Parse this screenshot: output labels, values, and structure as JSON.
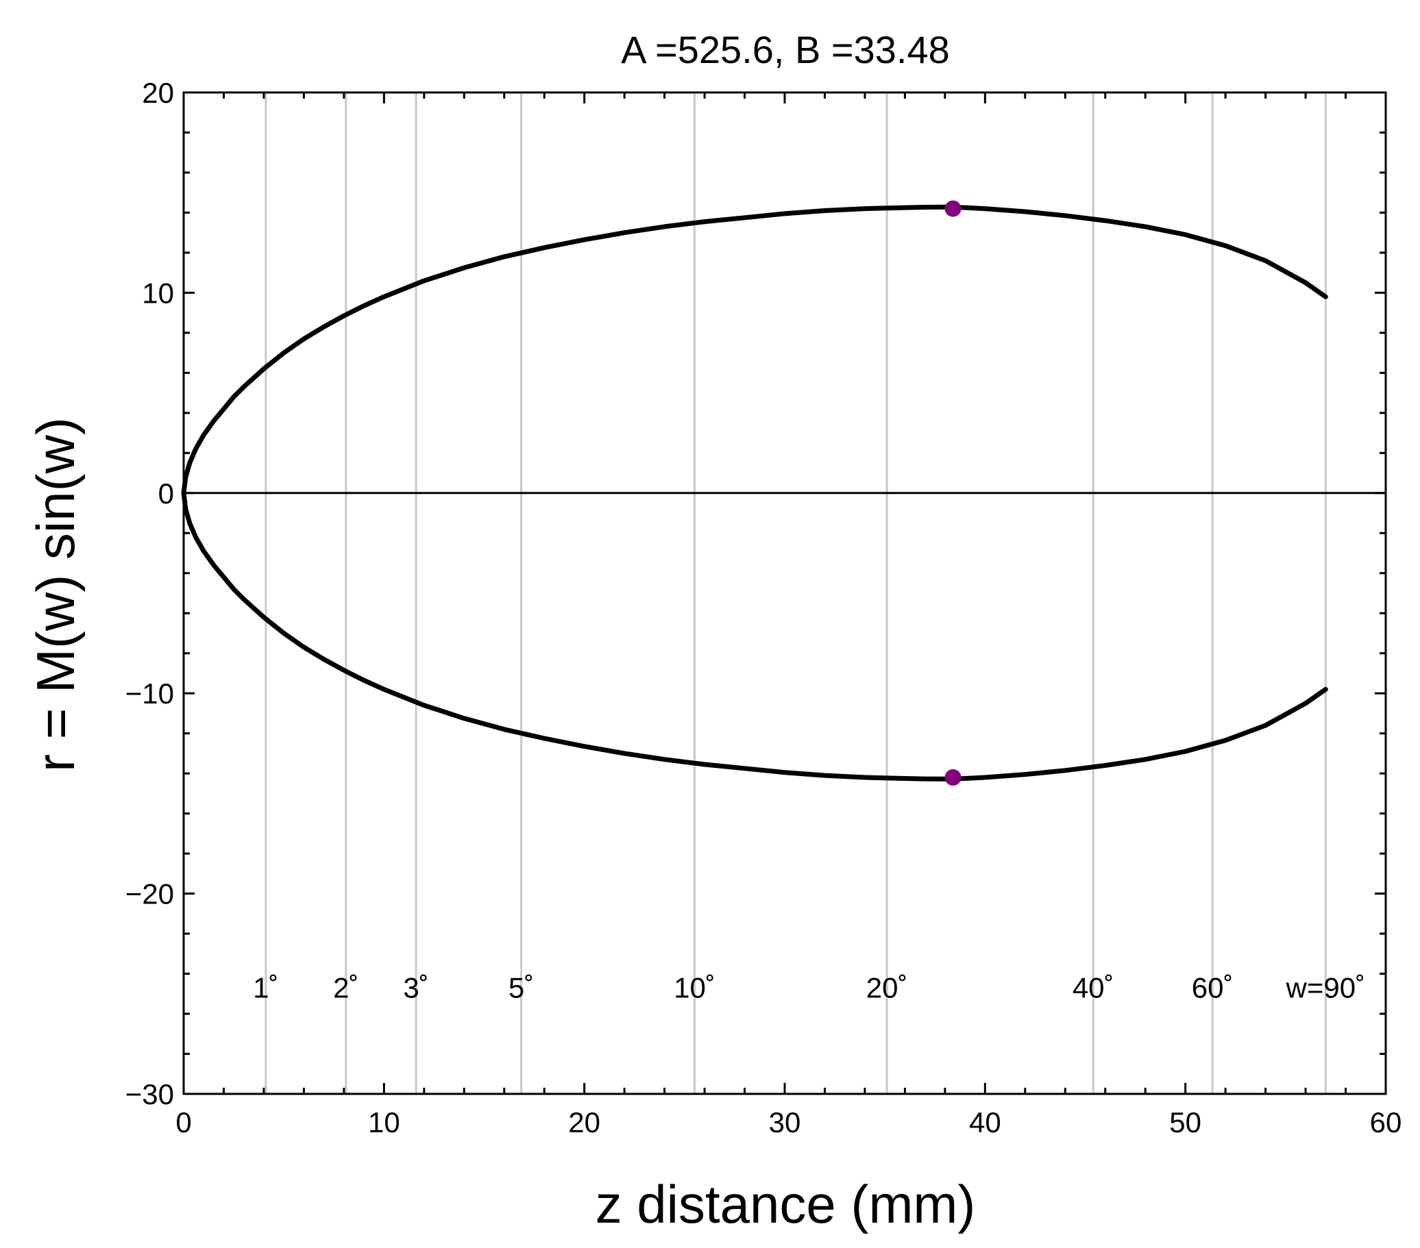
{
  "chart_data": {
    "type": "line",
    "title": "A =525.6, B =33.48",
    "xlabel": "z distance (mm)",
    "ylabel": "r = M(w) sin(w)",
    "xlim": [
      0,
      60
    ],
    "ylim": [
      -30,
      20
    ],
    "x_ticks": [
      0,
      10,
      20,
      30,
      40,
      50,
      60
    ],
    "x_tick_labels": [
      "0",
      "10",
      "20",
      "30",
      "40",
      "50",
      "60"
    ],
    "y_ticks": [
      20,
      10,
      0,
      -10,
      -20,
      -30
    ],
    "y_tick_labels": [
      "20",
      "10",
      "0",
      "−10",
      "−20",
      "−30"
    ],
    "grid": false,
    "zero_line": true,
    "series": [
      {
        "color": "#000000",
        "x": [
          0,
          0.1,
          0.3,
          0.6,
          1.0,
          1.5,
          2.0,
          2.5,
          3.0,
          4.0,
          5.0,
          6.0,
          7.0,
          8.0,
          9.0,
          10.0,
          12.0,
          14.0,
          16.0,
          18.0,
          20.0,
          22.0,
          24.0,
          26.0,
          28.0,
          30.0,
          32.0,
          34.0,
          36.0,
          37.0,
          38.0,
          38.4,
          39.0,
          40.0,
          42.0,
          44.0,
          46.0,
          48.0,
          50.0,
          52.0,
          54.0,
          56.0,
          57.0
        ],
        "y": [
          0,
          0.8,
          1.5,
          2.2,
          2.9,
          3.6,
          4.2,
          4.8,
          5.3,
          6.2,
          7.0,
          7.7,
          8.3,
          8.85,
          9.35,
          9.8,
          10.6,
          11.25,
          11.8,
          12.25,
          12.65,
          13.0,
          13.3,
          13.55,
          13.75,
          13.95,
          14.1,
          14.2,
          14.25,
          14.27,
          14.28,
          14.27,
          14.25,
          14.2,
          14.05,
          13.85,
          13.6,
          13.3,
          12.9,
          12.35,
          11.6,
          10.5,
          9.8
        ]
      },
      {
        "color": "#000000",
        "x": [
          0,
          0.1,
          0.3,
          0.6,
          1.0,
          1.5,
          2.0,
          2.5,
          3.0,
          4.0,
          5.0,
          6.0,
          7.0,
          8.0,
          9.0,
          10.0,
          12.0,
          14.0,
          16.0,
          18.0,
          20.0,
          22.0,
          24.0,
          26.0,
          28.0,
          30.0,
          32.0,
          34.0,
          36.0,
          37.0,
          38.0,
          38.4,
          39.0,
          40.0,
          42.0,
          44.0,
          46.0,
          48.0,
          50.0,
          52.0,
          54.0,
          56.0,
          57.0
        ],
        "y": [
          0,
          -0.8,
          -1.5,
          -2.2,
          -2.9,
          -3.6,
          -4.2,
          -4.8,
          -5.3,
          -6.2,
          -7.0,
          -7.7,
          -8.3,
          -8.85,
          -9.35,
          -9.8,
          -10.6,
          -11.25,
          -11.8,
          -12.25,
          -12.65,
          -13.0,
          -13.3,
          -13.55,
          -13.75,
          -13.95,
          -14.1,
          -14.2,
          -14.25,
          -14.27,
          -14.28,
          -14.27,
          -14.25,
          -14.2,
          -14.05,
          -13.85,
          -13.6,
          -13.3,
          -12.9,
          -12.35,
          -11.6,
          -10.5,
          -9.8
        ]
      }
    ],
    "markers": [
      {
        "x": 38.4,
        "y": 14.2,
        "color": "#800080"
      },
      {
        "x": 38.4,
        "y": -14.2,
        "color": "#800080"
      }
    ],
    "angle_lines": [
      {
        "label": "1˚",
        "x": 4.1
      },
      {
        "label": "2˚",
        "x": 8.1
      },
      {
        "label": "3˚",
        "x": 11.6
      },
      {
        "label": "5˚",
        "x": 16.85
      },
      {
        "label": "10˚",
        "x": 25.5
      },
      {
        "label": "20˚",
        "x": 35.1
      },
      {
        "label": "40˚",
        "x": 45.4
      },
      {
        "label": "60˚",
        "x": 51.35
      },
      {
        "label": "w=90˚",
        "x": 57.0
      }
    ],
    "angle_label_y": -25.2,
    "angle_line_color": "#c8c8c8"
  }
}
